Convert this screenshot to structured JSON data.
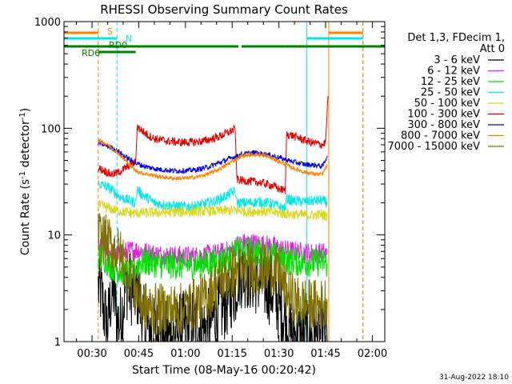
{
  "chart_data": {
    "type": "line",
    "title": "RHESSI Observing Summary Count Rates",
    "xlabel": "Start Time (08-May-16 00:20:42)",
    "ylabel": "Count Rate (s⁻¹ detector⁻¹)",
    "ylabel_parts": [
      "Count Rate (s",
      "-1",
      " detector",
      "-1",
      ")"
    ],
    "y_scale": "log",
    "ylim": [
      1,
      1000
    ],
    "xlim_min": [
      21,
      124
    ],
    "x_ticks": [
      {
        "min": 30,
        "label": "00:30"
      },
      {
        "min": 45,
        "label": "00:45"
      },
      {
        "min": 60,
        "label": "01:00"
      },
      {
        "min": 75,
        "label": "01:15"
      },
      {
        "min": 90,
        "label": "01:30"
      },
      {
        "min": 105,
        "label": "01:45"
      },
      {
        "min": 120,
        "label": "02:00"
      }
    ],
    "y_ticks": [
      {
        "value": 1,
        "label": "1"
      },
      {
        "value": 10,
        "label": "10"
      },
      {
        "value": 100,
        "label": "100"
      },
      {
        "value": 1000,
        "label": "1000"
      }
    ],
    "legend": {
      "title_lines": [
        "Det 1,3, FDecim 1,",
        "Att 0"
      ],
      "position": "right",
      "entries": [
        {
          "label": "3 - 6 keV",
          "color": "#000000"
        },
        {
          "label": "6 - 12 keV",
          "color": "#e020e0"
        },
        {
          "label": "12 - 25 keV",
          "color": "#00e000"
        },
        {
          "label": "25 - 50 keV",
          "color": "#00e8e8"
        },
        {
          "label": "50 - 100 keV",
          "color": "#d8d820"
        },
        {
          "label": "100 - 300 keV",
          "color": "#e00000"
        },
        {
          "label": "300 - 800 keV",
          "color": "#0000e0"
        },
        {
          "label": "800 - 7000 keV",
          "color": "#ff8000"
        },
        {
          "label": "7000 - 15000 keV",
          "color": "#807000"
        }
      ]
    },
    "flag_labels": [
      {
        "text": "S",
        "color": "#ff8000"
      },
      {
        "text": "N",
        "color": "#00e8e8"
      },
      {
        "text": "RD0",
        "color": "#008000"
      },
      {
        "text": "RD6",
        "color": "#008000"
      }
    ],
    "flag_bars": [
      {
        "name": "saa",
        "color": "#ff8000",
        "level": 1,
        "ranges": [
          [
            21,
            32
          ],
          [
            106,
            117
          ]
        ]
      },
      {
        "name": "night",
        "color": "#00e8e8",
        "level": 2,
        "ranges": [
          [
            21,
            38
          ],
          [
            99,
            117
          ]
        ]
      },
      {
        "name": "rd0",
        "color": "#008000",
        "level": 3,
        "ranges": [
          [
            21,
            44
          ],
          [
            44,
            77
          ],
          [
            78,
            92
          ],
          [
            92,
            124
          ]
        ]
      },
      {
        "name": "rd6",
        "color": "#008000",
        "level": 4,
        "ranges": [
          [
            32,
            44
          ]
        ]
      }
    ],
    "vlines": [
      {
        "min": 21,
        "color": "#00e8e8",
        "style": "solid"
      },
      {
        "min": 32,
        "color": "#ff8000",
        "style": "dash"
      },
      {
        "min": 38,
        "color": "#00e8e8",
        "style": "dash"
      },
      {
        "min": 99,
        "color": "#00e8e8",
        "style": "solid"
      },
      {
        "min": 106,
        "color": "#ff8000",
        "style": "solid"
      },
      {
        "min": 117,
        "color": "#00e8e8",
        "style": "dash"
      },
      {
        "min": 117,
        "color": "#ff8000",
        "style": "dash"
      }
    ],
    "series": [
      {
        "name": "3 - 6 keV",
        "color": "#000000",
        "noise": 0.35,
        "points": [
          [
            32,
            3.2
          ],
          [
            33,
            2.8
          ],
          [
            34,
            1.8
          ],
          [
            35,
            1.4
          ],
          [
            36,
            2.5
          ],
          [
            37,
            3.0
          ],
          [
            38,
            1.6
          ],
          [
            39,
            1.5
          ],
          [
            40,
            2.2
          ],
          [
            41,
            3.5
          ],
          [
            43,
            3.0
          ],
          [
            45,
            2.8
          ],
          [
            46,
            1.8
          ],
          [
            47,
            1.4
          ],
          [
            48,
            1.3
          ],
          [
            50,
            1.2
          ],
          [
            55,
            1.1
          ],
          [
            58,
            1.3
          ],
          [
            62,
            1.5
          ],
          [
            66,
            1.3
          ],
          [
            70,
            1.8
          ],
          [
            74,
            2.5
          ],
          [
            75,
            3.0
          ],
          [
            76,
            3.0
          ],
          [
            77,
            4.5
          ],
          [
            79,
            4.5
          ],
          [
            82,
            4.0
          ],
          [
            85,
            3.5
          ],
          [
            88,
            3.0
          ],
          [
            90,
            2.2
          ],
          [
            92,
            1.6
          ],
          [
            94,
            1.2
          ],
          [
            97,
            1.1
          ],
          [
            100,
            1.1
          ],
          [
            104,
            1.1
          ],
          [
            105,
            1.2
          ],
          [
            105.5,
            1.0
          ]
        ]
      },
      {
        "name": "6 - 12 keV",
        "color": "#e020e0",
        "noise": 0.1,
        "points": [
          [
            32,
            7.5
          ],
          [
            34,
            7.3
          ],
          [
            36,
            7.0
          ],
          [
            38,
            6.6
          ],
          [
            40,
            6.8
          ],
          [
            43,
            7.2
          ],
          [
            45,
            7.2
          ],
          [
            48,
            6.8
          ],
          [
            52,
            6.5
          ],
          [
            58,
            6.3
          ],
          [
            64,
            6.3
          ],
          [
            70,
            6.6
          ],
          [
            75,
            7.2
          ],
          [
            76,
            7.8
          ],
          [
            77,
            8.2
          ],
          [
            80,
            8.4
          ],
          [
            84,
            8.2
          ],
          [
            88,
            7.8
          ],
          [
            92,
            7.2
          ],
          [
            96,
            6.9
          ],
          [
            100,
            6.7
          ],
          [
            104,
            6.8
          ],
          [
            105.5,
            6.6
          ]
        ]
      },
      {
        "name": "12 - 25 keV",
        "color": "#00e000",
        "noise": 0.14,
        "points": [
          [
            32,
            6.2
          ],
          [
            34,
            6.0
          ],
          [
            36,
            5.2
          ],
          [
            38,
            4.8
          ],
          [
            40,
            4.5
          ],
          [
            43,
            4.2
          ],
          [
            45,
            5.5
          ],
          [
            48,
            5.6
          ],
          [
            52,
            5.3
          ],
          [
            58,
            5.2
          ],
          [
            64,
            5.3
          ],
          [
            70,
            5.6
          ],
          [
            75,
            6.2
          ],
          [
            76,
            6.8
          ],
          [
            77,
            7.0
          ],
          [
            80,
            7.0
          ],
          [
            84,
            6.8
          ],
          [
            88,
            6.3
          ],
          [
            92,
            5.8
          ],
          [
            96,
            5.6
          ],
          [
            100,
            5.5
          ],
          [
            104,
            5.6
          ],
          [
            105.5,
            5.4
          ]
        ]
      },
      {
        "name": "25 - 50 keV",
        "color": "#00e8e8",
        "noise": 0.05,
        "points": [
          [
            32,
            30
          ],
          [
            34,
            29
          ],
          [
            36,
            27
          ],
          [
            38,
            24
          ],
          [
            40,
            22
          ],
          [
            42,
            21
          ],
          [
            44,
            20
          ],
          [
            44.5,
            27
          ],
          [
            46,
            24
          ],
          [
            48,
            22
          ],
          [
            50,
            20
          ],
          [
            54,
            19
          ],
          [
            58,
            18.5
          ],
          [
            62,
            18.5
          ],
          [
            66,
            19.5
          ],
          [
            70,
            21
          ],
          [
            74,
            24
          ],
          [
            76,
            26
          ],
          [
            76.5,
            20
          ],
          [
            80,
            20
          ],
          [
            84,
            20.5
          ],
          [
            88,
            19.5
          ],
          [
            90,
            18.5
          ],
          [
            92,
            17.5
          ],
          [
            92.5,
            22
          ],
          [
            94,
            21
          ],
          [
            98,
            20.5
          ],
          [
            102,
            21
          ],
          [
            104,
            21
          ],
          [
            105.5,
            20
          ]
        ]
      },
      {
        "name": "50 - 100 keV",
        "color": "#d8d820",
        "noise": 0.05,
        "points": [
          [
            32,
            19
          ],
          [
            34,
            18.5
          ],
          [
            36,
            17.5
          ],
          [
            38,
            17
          ],
          [
            40,
            16.5
          ],
          [
            43,
            16
          ],
          [
            76.5,
            17
          ],
          [
            80,
            16.5
          ],
          [
            84,
            16.8
          ],
          [
            88,
            16.3
          ],
          [
            92,
            15.8
          ],
          [
            96,
            15.5
          ],
          [
            100,
            15.3
          ],
          [
            104,
            15.5
          ],
          [
            105.5,
            15
          ]
        ]
      },
      {
        "name": "100 - 300 keV",
        "color": "#e00000",
        "noise": 0.04,
        "points": [
          [
            32,
            42
          ],
          [
            34,
            40
          ],
          [
            36,
            37
          ],
          [
            38,
            38
          ],
          [
            40,
            41
          ],
          [
            42,
            45
          ],
          [
            44,
            48
          ],
          [
            44.5,
            105
          ],
          [
            46,
            95
          ],
          [
            48,
            86
          ],
          [
            50,
            80
          ],
          [
            54,
            76
          ],
          [
            58,
            74
          ],
          [
            62,
            74
          ],
          [
            66,
            76
          ],
          [
            70,
            82
          ],
          [
            74,
            92
          ],
          [
            76,
            99
          ],
          [
            76.5,
            33
          ],
          [
            80,
            32
          ],
          [
            84,
            31
          ],
          [
            88,
            29
          ],
          [
            90,
            27
          ],
          [
            92,
            26
          ],
          [
            92.5,
            88
          ],
          [
            94,
            86
          ],
          [
            98,
            78
          ],
          [
            100,
            74
          ],
          [
            102,
            72
          ],
          [
            104,
            70
          ],
          [
            105,
            74
          ],
          [
            105.3,
            110
          ],
          [
            105.6,
            160
          ],
          [
            105.8,
            200
          ]
        ]
      },
      {
        "name": "300 - 800 keV",
        "color": "#0000e0",
        "noise": 0.025,
        "points": [
          [
            32,
            73
          ],
          [
            34,
            70
          ],
          [
            36,
            66
          ],
          [
            38,
            62
          ],
          [
            40,
            56
          ],
          [
            42,
            51
          ],
          [
            44,
            47
          ],
          [
            46,
            45
          ],
          [
            48,
            43
          ],
          [
            52,
            41
          ],
          [
            56,
            40
          ],
          [
            60,
            40
          ],
          [
            64,
            41
          ],
          [
            68,
            44
          ],
          [
            72,
            49
          ],
          [
            75,
            53
          ],
          [
            78,
            57
          ],
          [
            82,
            59
          ],
          [
            86,
            57
          ],
          [
            90,
            53
          ],
          [
            94,
            49
          ],
          [
            98,
            46
          ],
          [
            102,
            45
          ],
          [
            104,
            44
          ],
          [
            105.5,
            55
          ]
        ]
      },
      {
        "name": "800 - 7000 keV",
        "color": "#ff8000",
        "noise": 0.02,
        "points": [
          [
            32,
            77
          ],
          [
            34,
            73
          ],
          [
            36,
            67
          ],
          [
            38,
            60
          ],
          [
            40,
            52
          ],
          [
            42,
            46
          ],
          [
            44,
            40
          ],
          [
            46,
            38
          ],
          [
            48,
            37
          ],
          [
            52,
            35
          ],
          [
            56,
            34
          ],
          [
            60,
            34
          ],
          [
            64,
            35
          ],
          [
            68,
            38
          ],
          [
            72,
            43
          ],
          [
            75,
            49
          ],
          [
            78,
            55
          ],
          [
            82,
            57
          ],
          [
            86,
            55
          ],
          [
            90,
            49
          ],
          [
            94,
            43
          ],
          [
            98,
            39
          ],
          [
            102,
            37
          ],
          [
            104,
            37
          ],
          [
            105.5,
            45
          ]
        ]
      },
      {
        "name": "7000 - 15000 keV",
        "color": "#807000",
        "noise": 0.25,
        "points": [
          [
            32,
            10
          ],
          [
            34,
            9
          ],
          [
            36,
            8
          ],
          [
            38,
            7
          ],
          [
            40,
            6
          ],
          [
            41,
            5
          ],
          [
            42,
            4.5
          ],
          [
            43,
            3.8
          ],
          [
            44,
            3.2
          ],
          [
            45,
            2.6
          ],
          [
            47,
            2.1
          ],
          [
            50,
            2.0
          ],
          [
            54,
            2.0
          ],
          [
            58,
            2.0
          ],
          [
            62,
            2.2
          ],
          [
            66,
            2.5
          ],
          [
            70,
            3.5
          ],
          [
            74,
            4.2
          ],
          [
            76,
            4.5
          ],
          [
            80,
            4.6
          ],
          [
            84,
            4.7
          ],
          [
            88,
            4.6
          ],
          [
            90,
            4.4
          ],
          [
            92,
            3.0
          ],
          [
            95,
            2.4
          ],
          [
            100,
            2.2
          ],
          [
            104,
            2.2
          ],
          [
            105.5,
            2.5
          ]
        ]
      }
    ]
  },
  "footer": {
    "timestamp": "31-Aug-2022 18:10"
  }
}
